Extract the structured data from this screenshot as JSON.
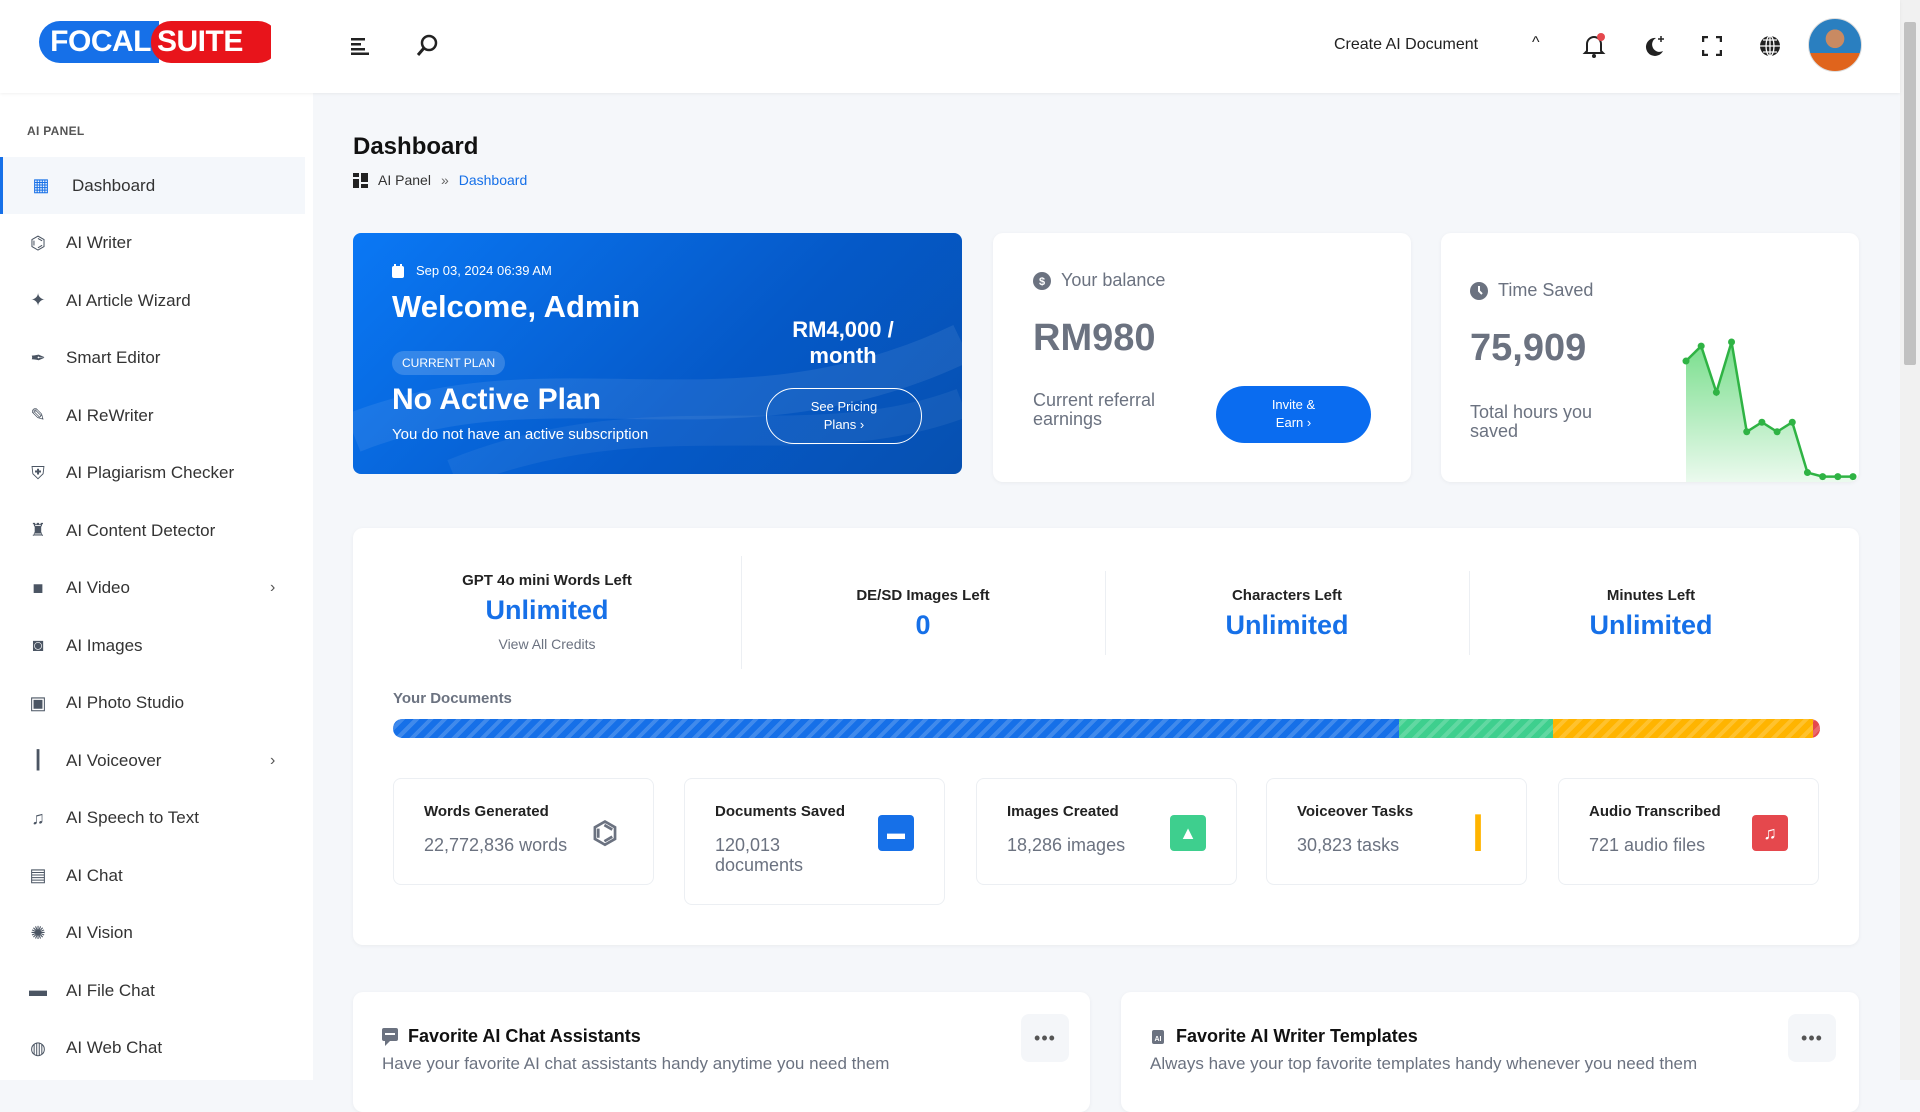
{
  "header": {
    "logo_left": "FOCAL",
    "logo_right": "SUITE",
    "create_doc": "Create AI Document",
    "icons": [
      "menu-icon",
      "search-icon",
      "bell-icon",
      "moon-icon",
      "fullscreen-icon",
      "globe-icon"
    ]
  },
  "sidebar": {
    "section": "AI PANEL",
    "items": [
      {
        "label": "Dashboard",
        "icon": "dashboard-icon",
        "active": true
      },
      {
        "label": "AI Writer",
        "icon": "ai-chip-icon"
      },
      {
        "label": "AI Article Wizard",
        "icon": "sparkles-icon"
      },
      {
        "label": "Smart Editor",
        "icon": "feather-icon"
      },
      {
        "label": "AI ReWriter",
        "icon": "pen-icon"
      },
      {
        "label": "AI Plagiarism Checker",
        "icon": "shield-check-icon"
      },
      {
        "label": "AI Content Detector",
        "icon": "detective-icon"
      },
      {
        "label": "AI Video",
        "icon": "video-icon",
        "submenu": true
      },
      {
        "label": "AI Images",
        "icon": "camera-scan-icon"
      },
      {
        "label": "AI Photo Studio",
        "icon": "photo-studio-icon"
      },
      {
        "label": "AI Voiceover",
        "icon": "waveform-icon",
        "submenu": true
      },
      {
        "label": "AI Speech to Text",
        "icon": "music-folder-icon"
      },
      {
        "label": "AI Chat",
        "icon": "chat-icon"
      },
      {
        "label": "AI Vision",
        "icon": "brain-icon"
      },
      {
        "label": "AI File Chat",
        "icon": "folder-icon"
      },
      {
        "label": "AI Web Chat",
        "icon": "globe-icon"
      }
    ]
  },
  "page": {
    "title": "Dashboard",
    "breadcrumb": [
      "AI Panel",
      "»",
      "Dashboard"
    ]
  },
  "welcome": {
    "date": "Sep 03, 2024 06:39 AM",
    "greeting": "Welcome, Admin",
    "badge": "CURRENT PLAN",
    "plan": "No Active Plan",
    "subtitle": "You do not have an active subscription",
    "price_line1": "RM4,000 /",
    "price_line2": "month",
    "button_line1": "See Pricing",
    "button_line2": "Plans ›"
  },
  "balance": {
    "label": "Your balance",
    "value": "RM980",
    "sub_line1": "Current referral",
    "sub_line2": "earnings",
    "button_line1": "Invite &",
    "button_line2": "Earn ›"
  },
  "time_saved": {
    "label": "Time Saved",
    "value": "75,909",
    "sub_line1": "Total hours you",
    "sub_line2": "saved"
  },
  "chart_data": {
    "type": "area",
    "values": [
      86,
      97,
      63,
      100,
      34,
      41,
      34,
      41,
      4,
      1,
      1,
      1
    ],
    "color": "#2fb344",
    "grid": false
  },
  "credits": [
    {
      "title": "GPT 4o mini Words Left",
      "value": "Unlimited",
      "link": "View All Credits"
    },
    {
      "title": "DE/SD Images Left",
      "value": "0"
    },
    {
      "title": "Characters Left",
      "value": "Unlimited"
    },
    {
      "title": "Minutes Left",
      "value": "Unlimited"
    }
  ],
  "documents": {
    "label": "Your Documents",
    "segments": [
      {
        "percent": 70.5,
        "color": "#1670e8"
      },
      {
        "percent": 10.8,
        "color": "#3ecf8e"
      },
      {
        "percent": 18.2,
        "color": "#ffb400"
      },
      {
        "percent": 0.5,
        "color": "#e5484d"
      }
    ]
  },
  "stats": [
    {
      "title": "Words Generated",
      "value": "22,772,836 words",
      "icon": "ai-chip-icon",
      "color": "#6b7280"
    },
    {
      "title": "Documents Saved",
      "value": "120,013 documents",
      "icon": "folder-icon",
      "color": "#1670e8"
    },
    {
      "title": "Images Created",
      "value": "18,286 images",
      "icon": "image-icon",
      "color": "#3ecf8e"
    },
    {
      "title": "Voiceover Tasks",
      "value": "30,823 tasks",
      "icon": "waveform-icon",
      "color": "#ffb400"
    },
    {
      "title": "Audio Transcribed",
      "value": "721 audio files",
      "icon": "music-folder-icon",
      "color": "#e5484d"
    }
  ],
  "favorites": [
    {
      "title": "Favorite AI Chat Assistants",
      "subtitle": "Have your favorite AI chat assistants handy anytime you need them",
      "icon": "chat-icon"
    },
    {
      "title": "Favorite AI Writer Templates",
      "subtitle": "Always have your top favorite templates handy whenever you need them",
      "icon": "ai-chip-icon"
    }
  ],
  "more_label": "•••"
}
